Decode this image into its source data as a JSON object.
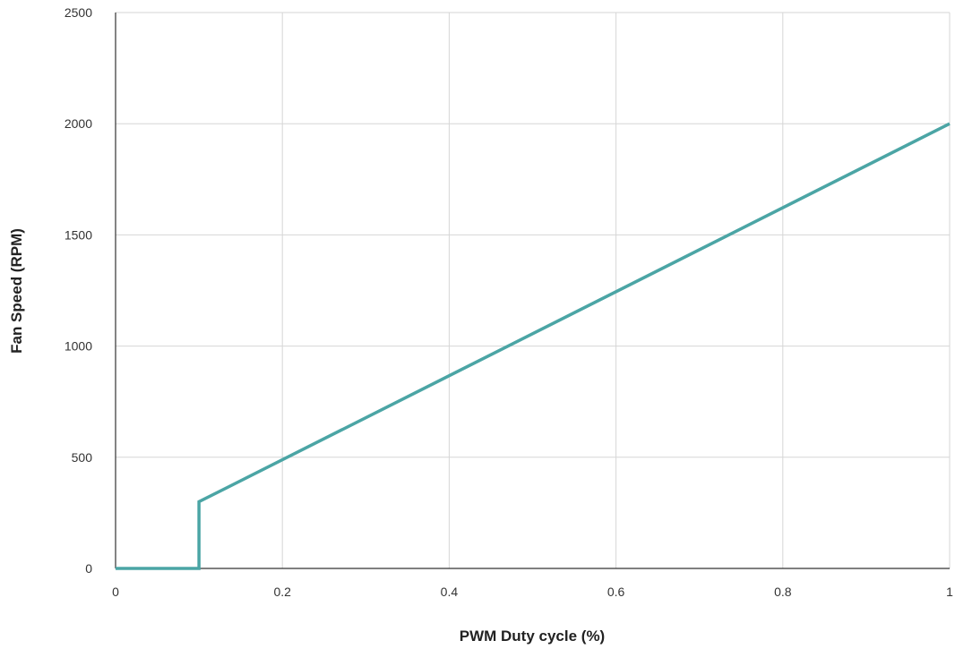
{
  "chart_data": {
    "type": "line",
    "title": "",
    "xlabel": "PWM Duty cycle (%)",
    "ylabel": "Fan Speed (RPM)",
    "xlim": [
      0,
      1
    ],
    "ylim": [
      0,
      2500
    ],
    "x_ticks": [
      "0",
      "0.2",
      "0.4",
      "0.6",
      "0.8",
      "1"
    ],
    "y_ticks": [
      "0",
      "500",
      "1000",
      "1500",
      "2000",
      "2500"
    ],
    "grid": true,
    "legend": "none",
    "series": [
      {
        "color": "#4ba5a5",
        "points": [
          {
            "x": 0,
            "y": 0
          },
          {
            "x": 0.1,
            "y": 0
          },
          {
            "x": 0.1,
            "y": 300
          },
          {
            "x": 1,
            "y": 2000
          }
        ]
      }
    ]
  },
  "colors": {
    "line": "#4ba5a5",
    "grid": "#d6d6d6",
    "axis": "#333333"
  }
}
